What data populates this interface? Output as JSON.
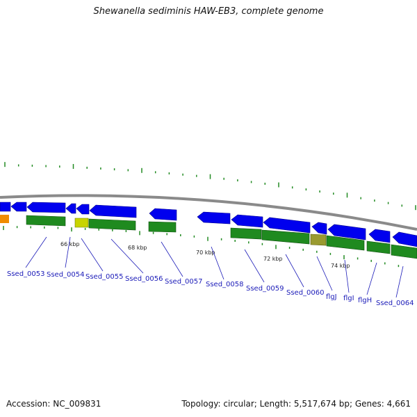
{
  "header": {
    "title": "Shewanella sediminis HAW-EB3, complete genome"
  },
  "footer": {
    "accession": "Accession: NC_009831",
    "stats": "Topology: circular; Length: 5,517,674 bp; Genes: 4,661"
  },
  "colors": {
    "background": "#ffffff",
    "backbone": "#8a8a8a",
    "forward_gene": "#0000ee",
    "reverse_gene": "#1f8a1f",
    "rna_gene": "#f08c00",
    "yellow_feature": "#c8d400",
    "olive_feature": "#9a9a30",
    "tick": "#228b22",
    "label": "#1a1ab8"
  },
  "scale_labels": [
    "66 kbp",
    "68 kbp",
    "70 kbp",
    "72 kbp",
    "74 kbp"
  ],
  "gene_labels": [
    "Ssed_0053",
    "Ssed_0054",
    "Ssed_0055",
    "Ssed_0056",
    "Ssed_0057",
    "Ssed_0058",
    "Ssed_0059",
    "Ssed_0060",
    "flgJ",
    "flgI",
    "flgH",
    "Ssed_0064"
  ]
}
